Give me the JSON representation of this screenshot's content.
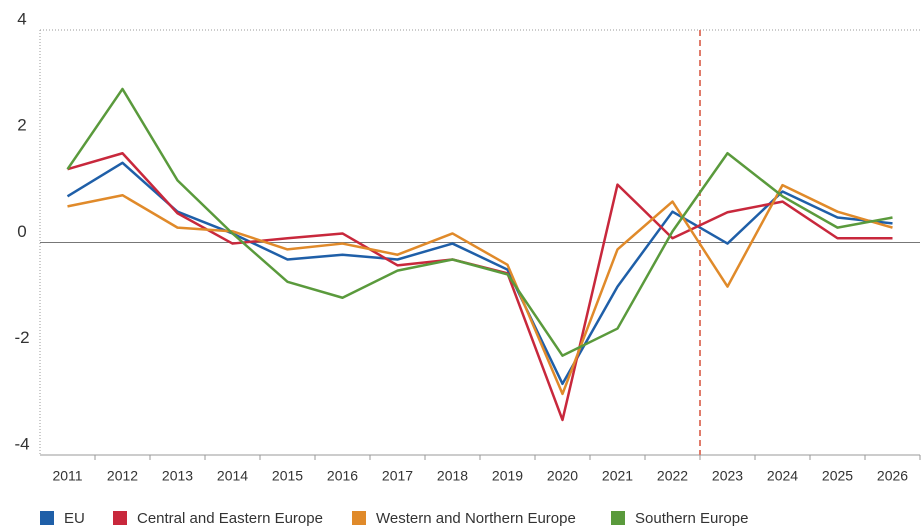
{
  "chart_data": {
    "type": "line",
    "categories": [
      "2011",
      "2012",
      "2013",
      "2014",
      "2015",
      "2016",
      "2017",
      "2018",
      "2019",
      "2020",
      "2021",
      "2022",
      "2023",
      "2024",
      "2025",
      "2026"
    ],
    "series": [
      {
        "name": "EU",
        "color": "#1f5fa8",
        "values": [
          0.87,
          1.5,
          0.58,
          0.17,
          -0.32,
          -0.23,
          -0.32,
          -0.02,
          -0.51,
          -2.66,
          -0.83,
          0.58,
          -0.02,
          0.96,
          0.47,
          0.36
        ]
      },
      {
        "name": "Central and Eastern Europe",
        "color": "#c8283c",
        "values": [
          1.38,
          1.68,
          0.55,
          -0.02,
          0.08,
          0.17,
          -0.43,
          -0.32,
          -0.58,
          -3.34,
          1.09,
          0.08,
          0.57,
          0.77,
          0.08,
          0.08
        ]
      },
      {
        "name": "Western and Northern Europe",
        "color": "#e08a2a",
        "values": [
          0.68,
          0.89,
          0.28,
          0.21,
          -0.13,
          -0.02,
          -0.23,
          0.17,
          -0.42,
          -2.85,
          -0.13,
          0.77,
          -0.83,
          1.08,
          0.58,
          0.28
        ]
      },
      {
        "name": "Southern Europe",
        "color": "#5a9a3c",
        "values": [
          1.38,
          2.89,
          1.17,
          0.17,
          -0.74,
          -1.04,
          -0.53,
          -0.32,
          -0.6,
          -2.13,
          -1.62,
          0.21,
          1.68,
          0.87,
          0.28,
          0.47
        ]
      }
    ],
    "ylim": [
      -4,
      4
    ],
    "yticks": [
      -4,
      -2,
      0,
      2,
      4
    ],
    "divider_after": "2022",
    "divider_color": "#e07b6a",
    "legend": "bottom"
  }
}
